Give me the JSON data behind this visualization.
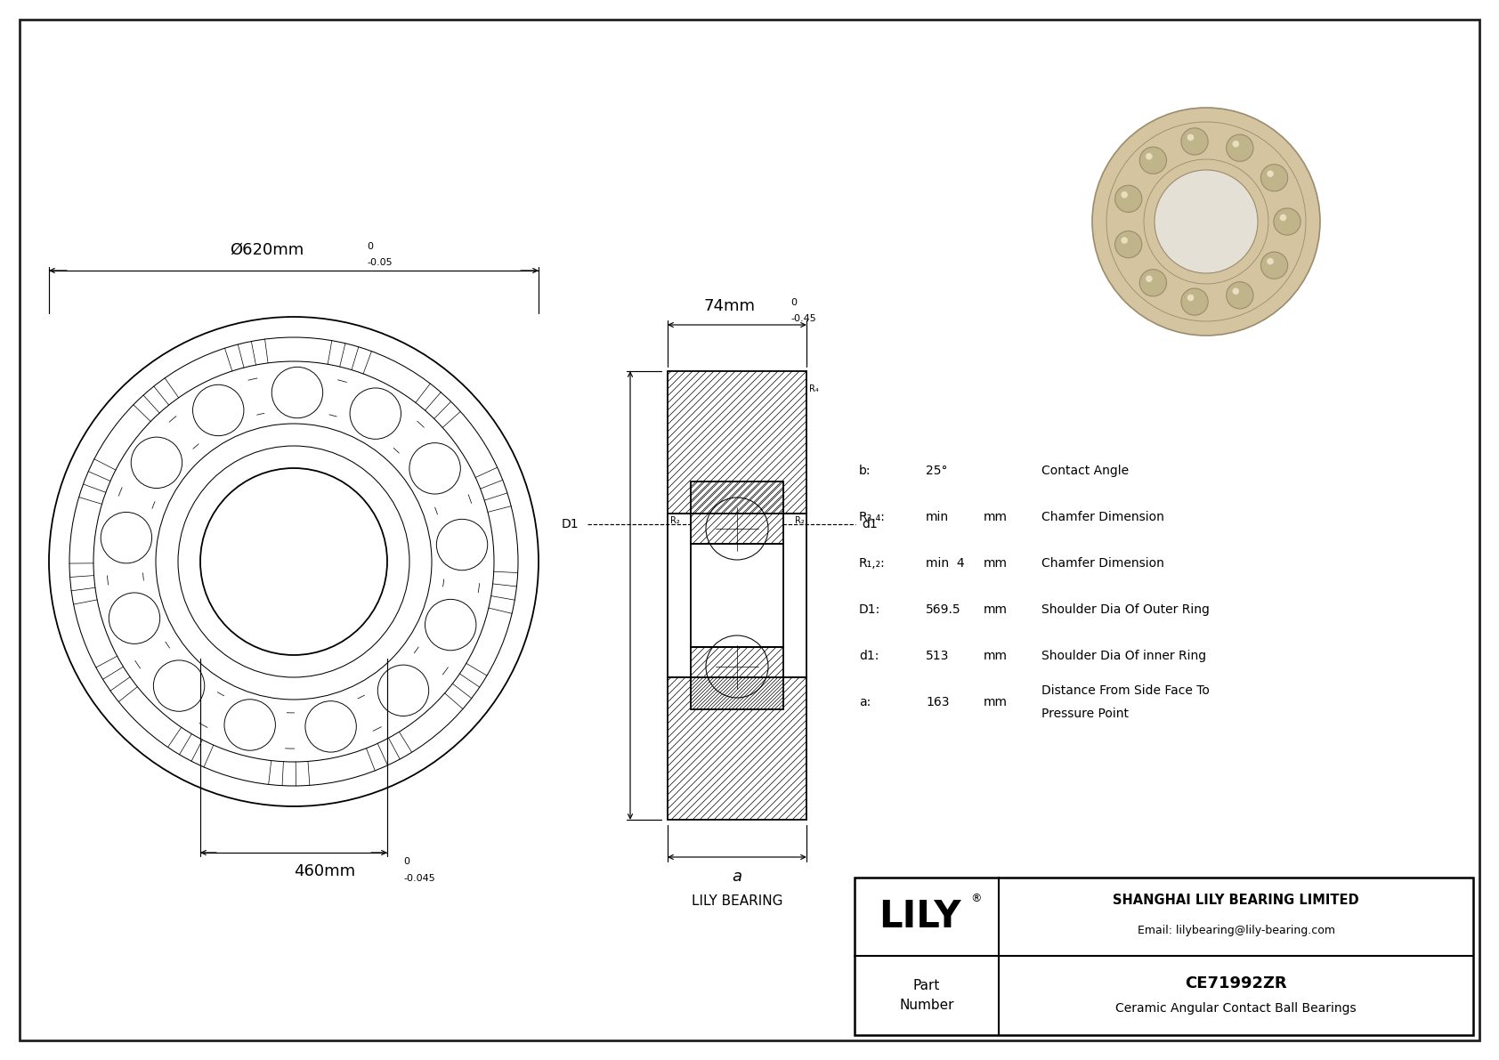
{
  "bg_color": "#ffffff",
  "line_color": "#000000",
  "outer_dia_main": "Ø620mm",
  "outer_dia_tol_upper": "0",
  "outer_dia_tol_lower": "-0.05",
  "inner_dia_main": "460mm",
  "inner_dia_tol_upper": "0",
  "inner_dia_tol_lower": "-0.045",
  "width_main": "74mm",
  "width_tol_upper": "0",
  "width_tol_lower": "-0.45",
  "brand_label": "LILY BEARING",
  "lily_text": "LILY",
  "company": "SHANGHAI LILY BEARING LIMITED",
  "email": "Email: lilybearing@lily-bearing.com",
  "part_number": "CE71992ZR",
  "part_type": "Ceramic Angular Contact Ball Bearings",
  "params": [
    {
      "symbol": "b:",
      "value": "25°",
      "unit": "",
      "description": "Contact Angle"
    },
    {
      "symbol": "R₃,₄:",
      "value": "min",
      "unit": "mm",
      "description": "Chamfer Dimension"
    },
    {
      "symbol": "R₁,₂:",
      "value": "min  4",
      "unit": "mm",
      "description": "Chamfer Dimension"
    },
    {
      "symbol": "D1:",
      "value": "569.5",
      "unit": "mm",
      "description": "Shoulder Dia Of Outer Ring"
    },
    {
      "symbol": "d1:",
      "value": "513",
      "unit": "mm",
      "description": "Shoulder Dia Of inner Ring"
    },
    {
      "symbol": "a:",
      "value": "163",
      "unit": "mm",
      "description": "Distance From Side Face To\nPressure Point"
    }
  ],
  "bearing_3d_color": "#d4c5a0",
  "bearing_3d_edge": "#9a8c6e",
  "bearing_3d_ball": "#c0b48a",
  "bearing_3d_hole": "#e5e0d5"
}
